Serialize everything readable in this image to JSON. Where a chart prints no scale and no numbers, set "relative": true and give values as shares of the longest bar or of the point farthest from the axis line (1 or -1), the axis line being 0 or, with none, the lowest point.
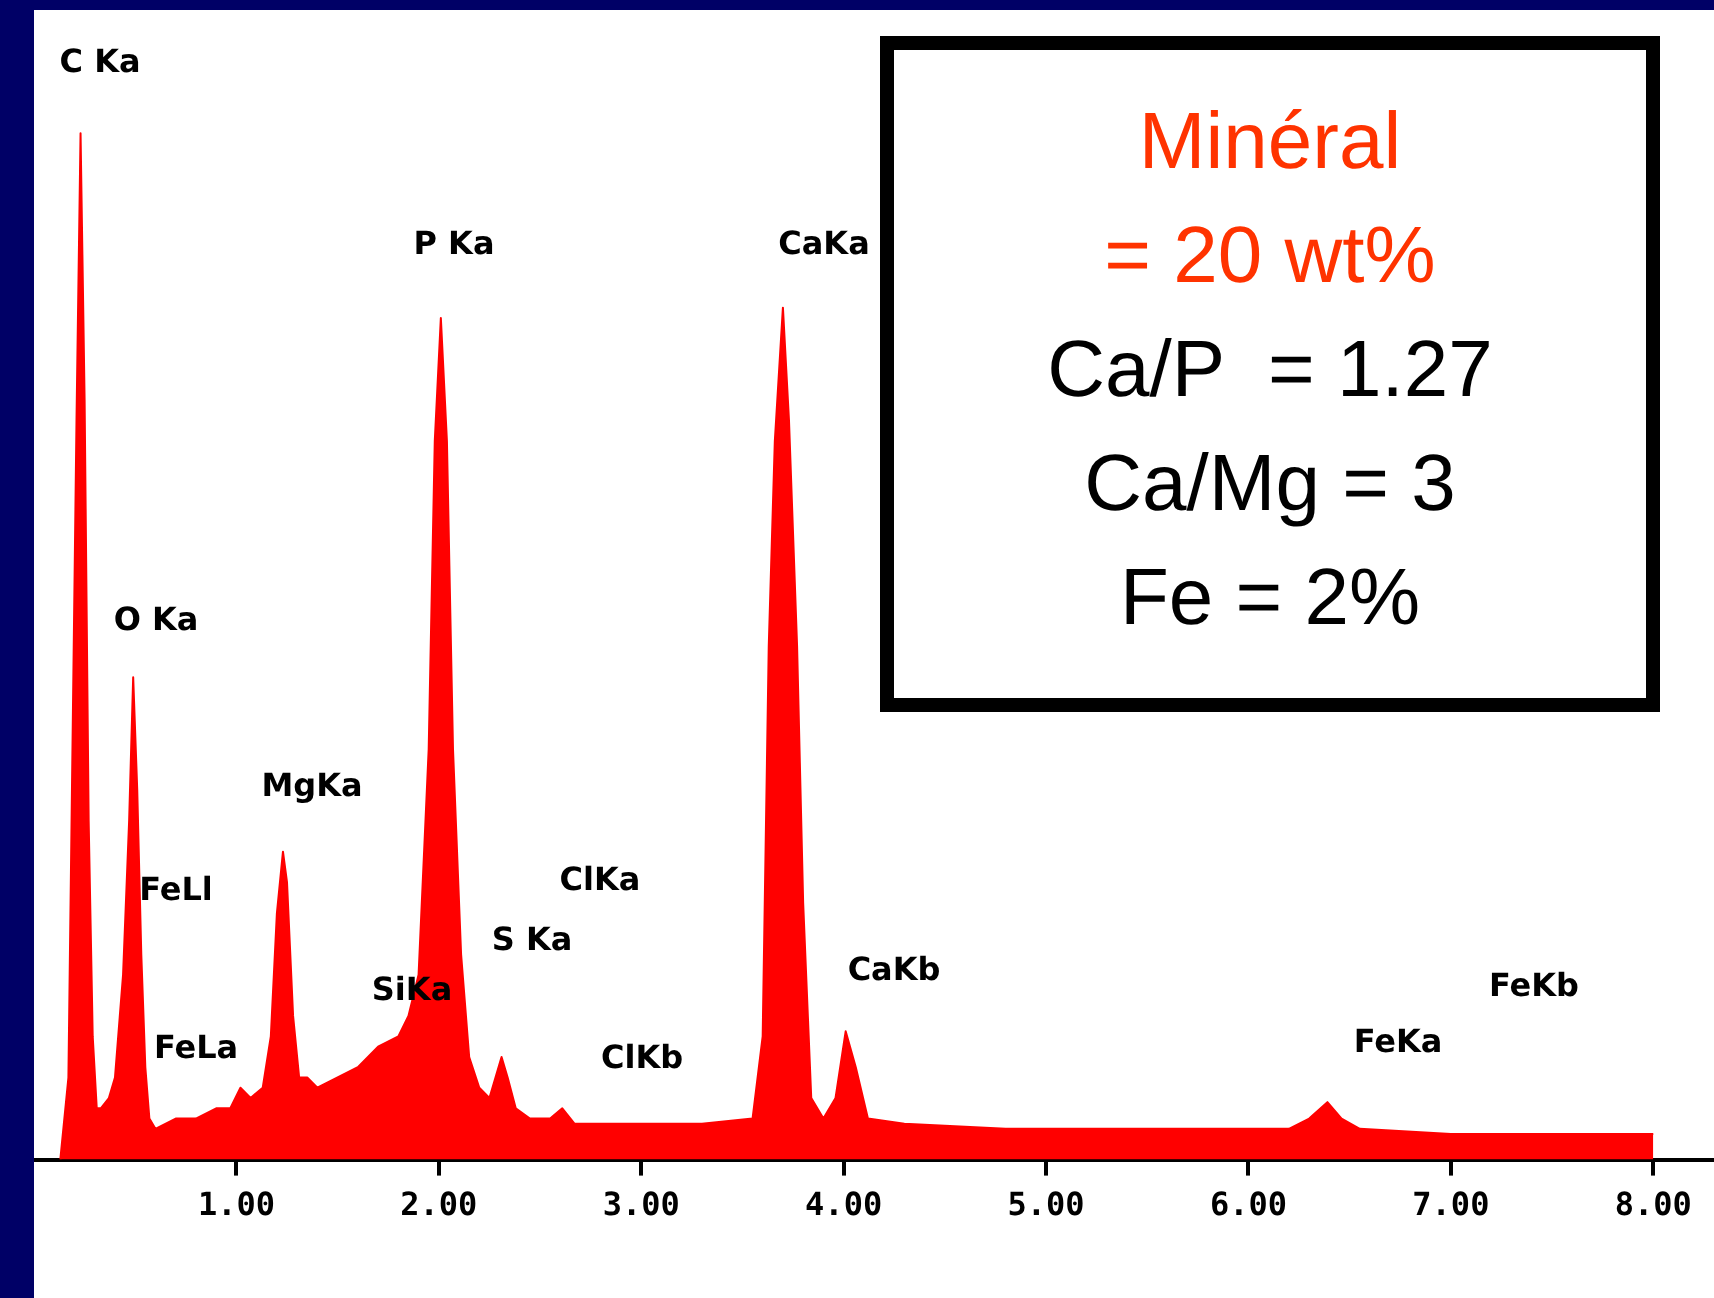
{
  "chart_data": {
    "type": "area",
    "relative": true,
    "x": [
      0.13,
      0.17,
      0.19,
      0.21,
      0.23,
      0.25,
      0.27,
      0.29,
      0.31,
      0.33,
      0.37,
      0.4,
      0.44,
      0.47,
      0.49,
      0.51,
      0.53,
      0.55,
      0.57,
      0.6,
      0.7,
      0.8,
      0.9,
      0.97,
      1.02,
      1.07,
      1.13,
      1.17,
      1.2,
      1.23,
      1.25,
      1.28,
      1.31,
      1.35,
      1.4,
      1.5,
      1.6,
      1.7,
      1.8,
      1.85,
      1.9,
      1.95,
      1.98,
      2.01,
      2.04,
      2.07,
      2.11,
      2.15,
      2.2,
      2.25,
      2.28,
      2.31,
      2.34,
      2.38,
      2.45,
      2.55,
      2.61,
      2.67,
      2.8,
      3.0,
      3.3,
      3.55,
      3.6,
      3.63,
      3.66,
      3.7,
      3.73,
      3.77,
      3.8,
      3.84,
      3.9,
      3.96,
      4.01,
      4.06,
      4.12,
      4.3,
      4.8,
      5.5,
      6.2,
      6.3,
      6.39,
      6.46,
      6.55,
      7.0,
      7.5,
      8.0
    ],
    "values": [
      0,
      0.08,
      0.4,
      0.72,
      1.0,
      0.74,
      0.33,
      0.12,
      0.05,
      0.05,
      0.06,
      0.08,
      0.18,
      0.33,
      0.47,
      0.36,
      0.2,
      0.09,
      0.04,
      0.03,
      0.04,
      0.04,
      0.05,
      0.05,
      0.07,
      0.06,
      0.07,
      0.12,
      0.24,
      0.3,
      0.27,
      0.14,
      0.08,
      0.08,
      0.07,
      0.08,
      0.09,
      0.11,
      0.12,
      0.14,
      0.18,
      0.4,
      0.7,
      0.82,
      0.7,
      0.4,
      0.2,
      0.1,
      0.07,
      0.06,
      0.08,
      0.1,
      0.08,
      0.05,
      0.04,
      0.04,
      0.05,
      0.035,
      0.035,
      0.035,
      0.035,
      0.04,
      0.12,
      0.5,
      0.7,
      0.83,
      0.72,
      0.5,
      0.25,
      0.06,
      0.04,
      0.06,
      0.125,
      0.09,
      0.04,
      0.035,
      0.03,
      0.03,
      0.03,
      0.04,
      0.056,
      0.04,
      0.03,
      0.025,
      0.025,
      0.025
    ],
    "color": "#ff0000",
    "xlim": [
      0,
      8.3
    ],
    "xticks": [
      {
        "value": 1,
        "label": "1.00"
      },
      {
        "value": 2,
        "label": "2.00"
      },
      {
        "value": 3,
        "label": "3.00"
      },
      {
        "value": 4,
        "label": "4.00"
      },
      {
        "value": 5,
        "label": "5.00"
      },
      {
        "value": 6,
        "label": "6.00"
      },
      {
        "value": 7,
        "label": "7.00"
      },
      {
        "value": 8,
        "label": "8.00"
      }
    ],
    "grid": false,
    "legend": false,
    "annotations": [
      "C Ka",
      "P Ka",
      "CaKa",
      "O Ka",
      "MgKa",
      "FeLl",
      "ClKa",
      "S Ka",
      "SiKa",
      "FeLa",
      "ClKb",
      "CaKb",
      "FeKa",
      "FeKb",
      "Minéral",
      "= 20 wt%",
      "Ca/P  = 1.27",
      "Ca/Mg = 3",
      "Fe = 2%"
    ]
  }
}
